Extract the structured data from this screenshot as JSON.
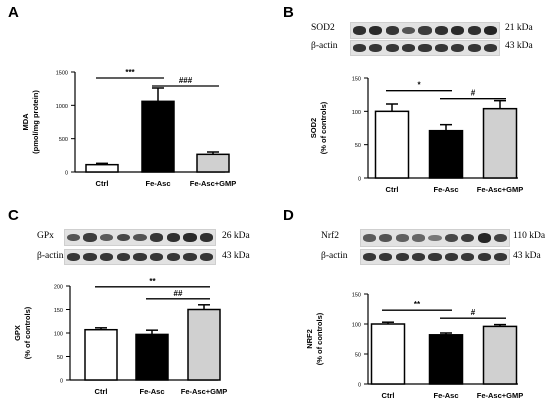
{
  "chart_data": [
    {
      "panel": "A",
      "type": "bar",
      "categories": [
        "Ctrl",
        "Fe-Asc",
        "Fe-Asc+GMP"
      ],
      "values": [
        110,
        1060,
        265
      ],
      "errors": [
        20,
        200,
        35
      ],
      "colors": [
        "#ffffff",
        "#000000",
        "#d0d0d0"
      ],
      "ylabel": [
        "MDA",
        "(pmol/mg protein)"
      ],
      "ylim": [
        0,
        1500
      ],
      "yticks": [
        "0",
        "500",
        "1000",
        "1500"
      ],
      "ytick_values": [
        0,
        500,
        1000,
        1500
      ],
      "significance": [
        {
          "from": 0,
          "to": 1,
          "label": "***"
        },
        {
          "from": 1,
          "to": 2,
          "label": "###"
        }
      ]
    },
    {
      "panel": "B",
      "type": "bar",
      "categories": [
        "Ctrl",
        "Fe-Asc",
        "Fe-Asc+GMP"
      ],
      "values": [
        100,
        71,
        104
      ],
      "errors": [
        11,
        9,
        12
      ],
      "colors": [
        "#ffffff",
        "#000000",
        "#d0d0d0"
      ],
      "ylabel": [
        "SOD2",
        "(% of controls)"
      ],
      "ylim": [
        0,
        150
      ],
      "yticks": [
        "0",
        "50",
        "100",
        "150"
      ],
      "ytick_values": [
        0,
        50,
        100,
        150
      ],
      "significance": [
        {
          "from": 0,
          "to": 1,
          "label": "*"
        },
        {
          "from": 1,
          "to": 2,
          "label": "#"
        }
      ],
      "blot": {
        "rows": [
          {
            "label": "SOD2",
            "kda": "21 kDa"
          },
          {
            "label": "β-actin",
            "kda": "43 kDa"
          }
        ]
      }
    },
    {
      "panel": "C",
      "type": "bar",
      "categories": [
        "Ctrl",
        "Fe-Asc",
        "Fe-Asc+GMP"
      ],
      "values": [
        107,
        97,
        150
      ],
      "errors": [
        4,
        9,
        10
      ],
      "colors": [
        "#ffffff",
        "#000000",
        "#d0d0d0"
      ],
      "ylabel": [
        "GPX",
        "(% of controls)"
      ],
      "ylim": [
        0,
        200
      ],
      "yticks": [
        "0",
        "50",
        "100",
        "150",
        "200"
      ],
      "ytick_values": [
        0,
        50,
        100,
        150,
        200
      ],
      "significance": [
        {
          "from": 1,
          "to": 2,
          "label": "##"
        },
        {
          "from": 0,
          "to": 2,
          "label": "**"
        }
      ],
      "blot": {
        "rows": [
          {
            "label": "GPx",
            "kda": "26 kDa"
          },
          {
            "label": "β-actin",
            "kda": "43 kDa"
          }
        ]
      }
    },
    {
      "panel": "D",
      "type": "bar",
      "categories": [
        "Ctrl",
        "Fe-Asc",
        "Fe-Asc+GMP"
      ],
      "values": [
        100,
        82,
        96
      ],
      "errors": [
        3,
        3,
        3
      ],
      "colors": [
        "#ffffff",
        "#000000",
        "#d0d0d0"
      ],
      "ylabel": [
        "NRF2",
        "(% of controls)"
      ],
      "ylim": [
        0,
        150
      ],
      "yticks": [
        "0",
        "50",
        "100",
        "150"
      ],
      "ytick_values": [
        0,
        50,
        100,
        150
      ],
      "significance": [
        {
          "from": 0,
          "to": 1,
          "label": "**"
        },
        {
          "from": 1,
          "to": 2,
          "label": "#"
        }
      ],
      "blot": {
        "rows": [
          {
            "label": "Nrf2",
            "kda": "110 kDa"
          },
          {
            "label": "β-actin",
            "kda": "43 kDa"
          }
        ]
      }
    }
  ]
}
